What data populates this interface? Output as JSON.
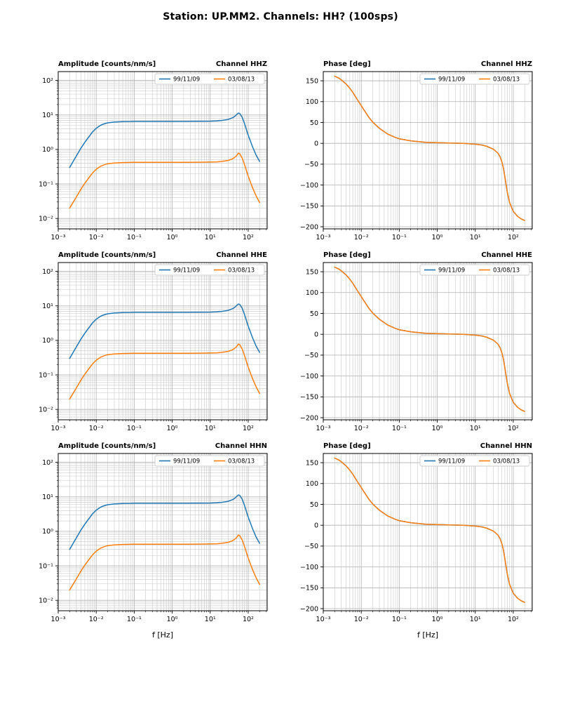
{
  "figure": {
    "title": "Station: UP.MM2. Channels: HH? (100sps)"
  },
  "colors": {
    "series1": "#1f77b4",
    "series2": "#ff7f0e",
    "grid_major": "#b0b0b0",
    "grid_minor": "#c9c9c9",
    "spine": "#000000",
    "legend_edge": "#cccccc",
    "background": "#ffffff"
  },
  "chart_data": {
    "type": "line",
    "x_scale": "log",
    "xlabel": "f [Hz]",
    "xlim": [
      0.001,
      316
    ],
    "x_ticks": [
      {
        "v": 0.001,
        "l": "10⁻³"
      },
      {
        "v": 0.01,
        "l": "10⁻²"
      },
      {
        "v": 0.1,
        "l": "10⁻¹"
      },
      {
        "v": 1,
        "l": "10⁰"
      },
      {
        "v": 10,
        "l": "10¹"
      },
      {
        "v": 100,
        "l": "10²"
      }
    ],
    "x": [
      0.002,
      0.0025,
      0.003,
      0.004,
      0.005,
      0.006,
      0.008,
      0.01,
      0.013,
      0.016,
      0.02,
      0.03,
      0.05,
      0.08,
      0.1,
      0.2,
      0.5,
      1,
      2,
      5,
      10,
      15,
      20,
      30,
      40,
      45,
      50,
      55,
      60,
      70,
      80,
      100,
      130,
      160,
      200
    ],
    "amplitude": {
      "title": "Amplitude [counts/nm/s]",
      "y_scale": "log",
      "ylim": [
        0.005,
        180
      ],
      "y_ticks": [
        {
          "v": 0.01,
          "l": "10⁻²"
        },
        {
          "v": 0.1,
          "l": "10⁻¹"
        },
        {
          "v": 1,
          "l": "10⁰"
        },
        {
          "v": 10,
          "l": "10¹"
        },
        {
          "v": 100,
          "l": "10²"
        }
      ],
      "series": [
        {
          "name": "99/11/09",
          "color_key": "series1",
          "y": [
            0.3,
            0.46,
            0.65,
            1.1,
            1.6,
            2.1,
            3.2,
            4.1,
            5.0,
            5.5,
            5.9,
            6.2,
            6.4,
            6.45,
            6.5,
            6.5,
            6.5,
            6.5,
            6.5,
            6.55,
            6.6,
            6.7,
            6.9,
            7.4,
            8.4,
            9.2,
            10.3,
            11.3,
            11.0,
            8.5,
            5.6,
            2.6,
            1.2,
            0.7,
            0.45
          ]
        },
        {
          "name": "03/08/13",
          "color_key": "series2",
          "y": [
            0.02,
            0.03,
            0.042,
            0.072,
            0.104,
            0.137,
            0.208,
            0.267,
            0.325,
            0.358,
            0.384,
            0.403,
            0.416,
            0.419,
            0.423,
            0.423,
            0.423,
            0.423,
            0.423,
            0.426,
            0.429,
            0.436,
            0.449,
            0.481,
            0.546,
            0.598,
            0.67,
            0.78,
            0.75,
            0.553,
            0.364,
            0.169,
            0.078,
            0.046,
            0.029
          ]
        }
      ]
    },
    "phase": {
      "title": "Phase [deg]",
      "y_scale": "linear",
      "ylim": [
        -205,
        172
      ],
      "y_ticks": [
        {
          "v": -200,
          "l": "−200"
        },
        {
          "v": -150,
          "l": "−150"
        },
        {
          "v": -100,
          "l": "−100"
        },
        {
          "v": -50,
          "l": "−50"
        },
        {
          "v": 0,
          "l": "0"
        },
        {
          "v": 50,
          "l": "50"
        },
        {
          "v": 100,
          "l": "100"
        },
        {
          "v": 150,
          "l": "150"
        }
      ],
      "shared_y": [
        161,
        157,
        152,
        142,
        132,
        122,
        104,
        90,
        74,
        62,
        51,
        36,
        22,
        14,
        11,
        6,
        2.5,
        1.5,
        0.8,
        0,
        -2,
        -4,
        -7,
        -14,
        -24,
        -32,
        -44,
        -60,
        -80,
        -118,
        -142,
        -163,
        -175,
        -181,
        -185
      ],
      "series": [
        {
          "name": "99/11/09",
          "color_key": "series1",
          "use_shared": true
        },
        {
          "name": "03/08/13",
          "color_key": "series2",
          "use_shared": true
        }
      ]
    },
    "legend_entries": [
      "99/11/09",
      "03/08/13"
    ],
    "subplots": [
      {
        "kind": "amplitude",
        "channel": "Channel HHZ",
        "show_xlabel": false
      },
      {
        "kind": "phase",
        "channel": "Channel HHZ",
        "show_xlabel": false
      },
      {
        "kind": "amplitude",
        "channel": "Channel HHE",
        "show_xlabel": false
      },
      {
        "kind": "phase",
        "channel": "Channel HHE",
        "show_xlabel": false
      },
      {
        "kind": "amplitude",
        "channel": "Channel HHN",
        "show_xlabel": true
      },
      {
        "kind": "phase",
        "channel": "Channel HHN",
        "show_xlabel": true
      }
    ]
  }
}
